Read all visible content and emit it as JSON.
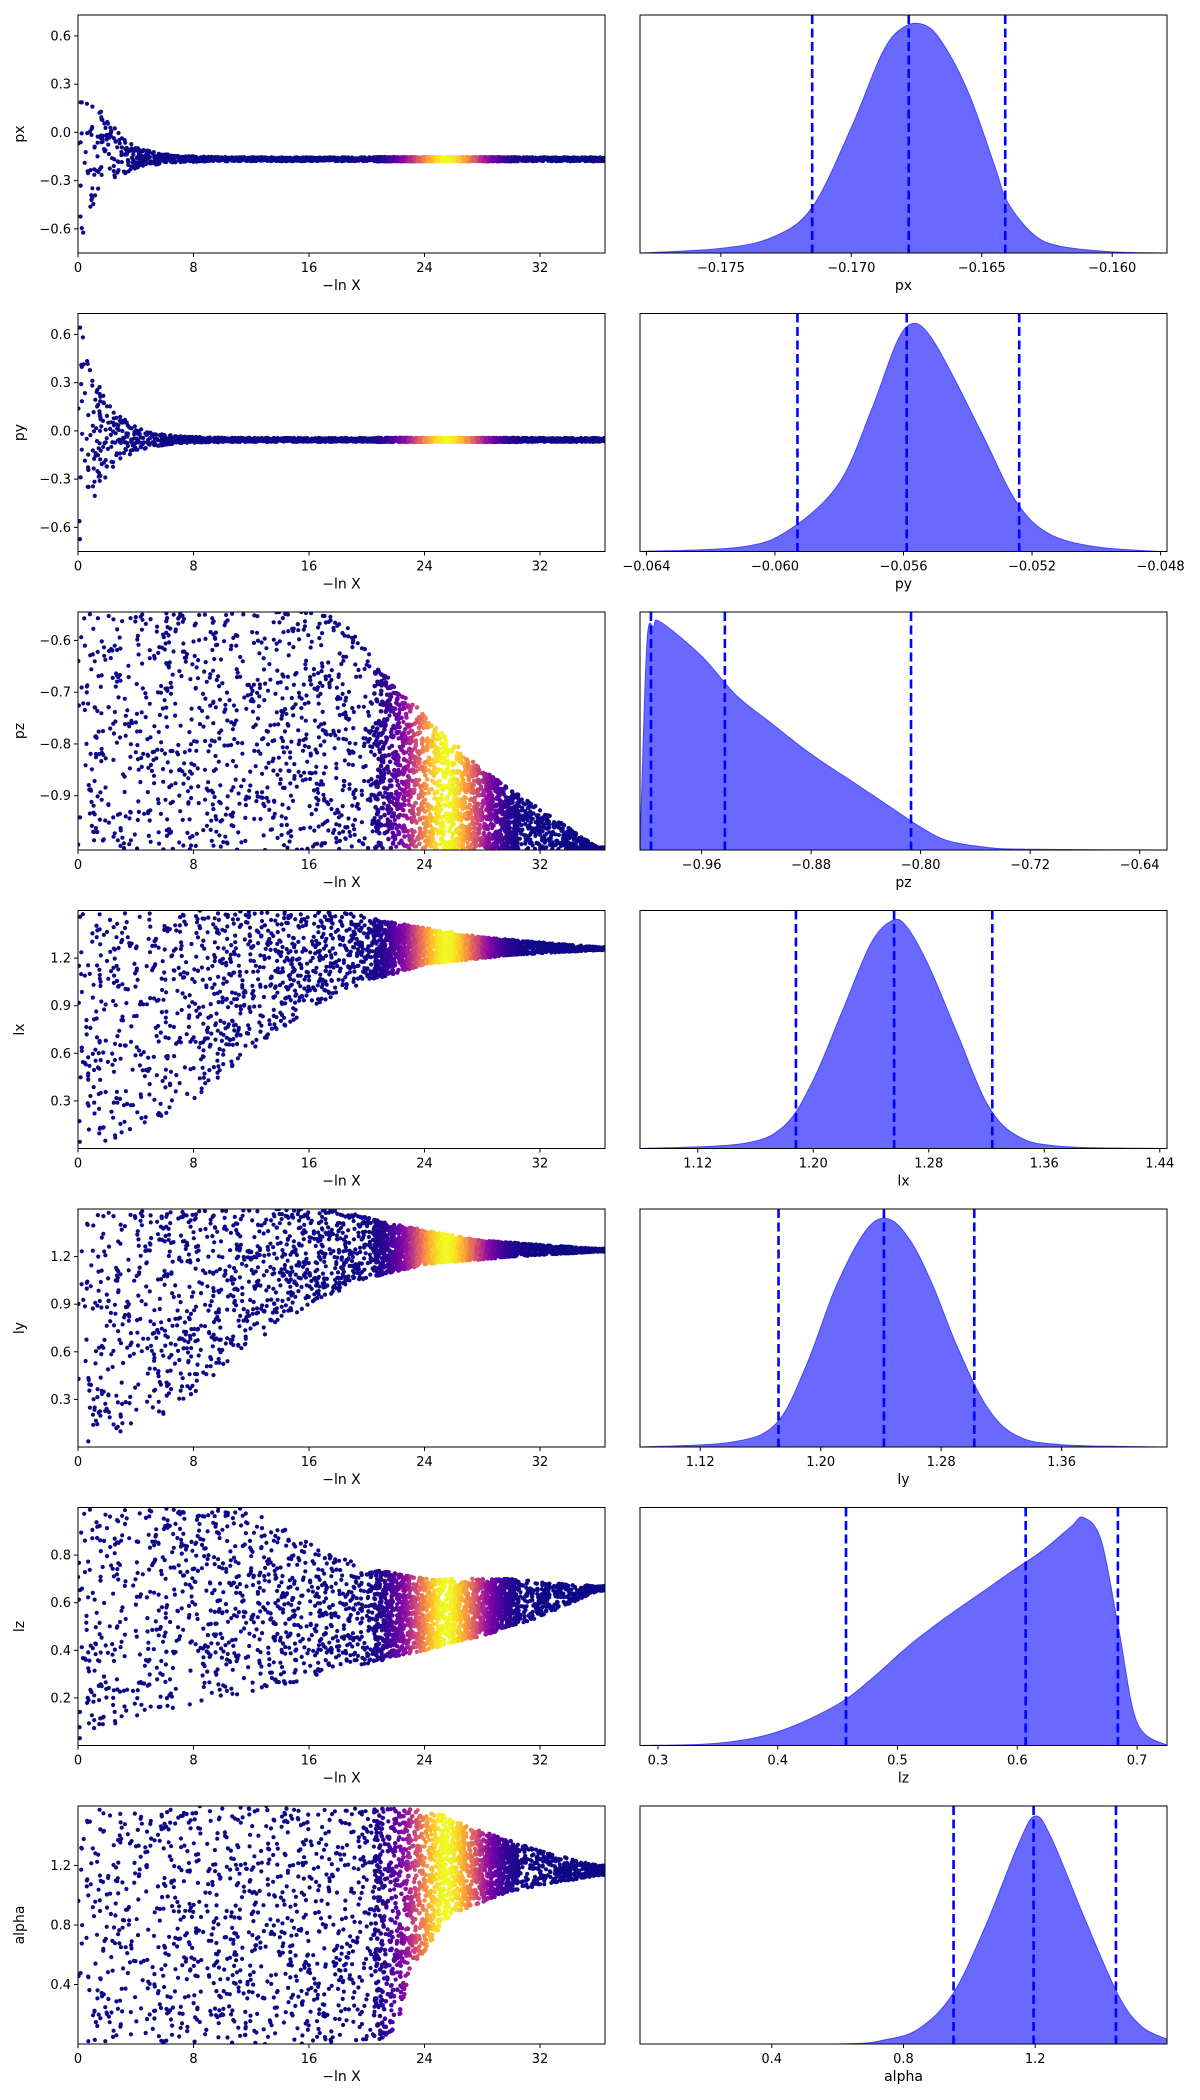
{
  "figure": {
    "colormap": "plasma",
    "posterior_fill": "#4444ff",
    "quantile_line": "#0000ff"
  },
  "chart_data": [
    {
      "type": "scatter",
      "panel": "trace",
      "param": "px",
      "xlabel": "−ln X",
      "ylabel": "px",
      "xlim": [
        0,
        36.5
      ],
      "ylim": [
        -0.75,
        0.73
      ],
      "xticks": [
        0,
        8,
        16,
        24,
        32
      ],
      "xtick_labels": [
        "0",
        "8",
        "16",
        "24",
        "32"
      ],
      "yticks": [
        -0.6,
        -0.3,
        0.0,
        0.3,
        0.6
      ],
      "ytick_labels": [
        "−0.6",
        "−0.3",
        "0.0",
        "0.3",
        "0.6"
      ],
      "spread": {
        "kind": "converge",
        "center": -0.167,
        "lower_start": -0.75,
        "upper_start": 0.73,
        "tau": 1.6,
        "lower_floor": -0.75,
        "upper_cap": 0.73
      },
      "posterior_peak_x": 25.5
    },
    {
      "type": "area",
      "panel": "posterior",
      "param": "px",
      "xlabel": "px",
      "xlim": [
        -0.1781,
        -0.1579
      ],
      "xticks": [
        -0.175,
        -0.17,
        -0.165,
        -0.16
      ],
      "xtick_labels": [
        "−0.175",
        "−0.170",
        "−0.165",
        "−0.160"
      ],
      "density": {
        "x": [
          -0.178,
          -0.175,
          -0.173,
          -0.1715,
          -0.17,
          -0.1688,
          -0.168,
          -0.1672,
          -0.1665,
          -0.1655,
          -0.1645,
          -0.164,
          -0.163,
          -0.162,
          -0.16,
          -0.158
        ],
        "y": [
          0,
          0.02,
          0.07,
          0.2,
          0.55,
          0.88,
          0.99,
          1.0,
          0.92,
          0.7,
          0.38,
          0.22,
          0.08,
          0.03,
          0.005,
          0
        ]
      },
      "quantiles": [
        -0.1715,
        -0.1678,
        -0.1641
      ]
    },
    {
      "type": "scatter",
      "panel": "trace",
      "param": "py",
      "xlabel": "−ln X",
      "ylabel": "py",
      "xlim": [
        0,
        36.5
      ],
      "ylim": [
        -0.75,
        0.73
      ],
      "xticks": [
        0,
        8,
        16,
        24,
        32
      ],
      "xtick_labels": [
        "0",
        "8",
        "16",
        "24",
        "32"
      ],
      "yticks": [
        -0.6,
        -0.3,
        0.0,
        0.3,
        0.6
      ],
      "ytick_labels": [
        "−0.6",
        "−0.3",
        "0.0",
        "0.3",
        "0.6"
      ],
      "spread": {
        "kind": "converge",
        "center": -0.056,
        "lower_start": -0.75,
        "upper_start": 0.73,
        "tau": 1.7,
        "lower_floor": -0.75,
        "upper_cap": 0.73
      },
      "posterior_peak_x": 25.5
    },
    {
      "type": "area",
      "panel": "posterior",
      "param": "py",
      "xlabel": "py",
      "xlim": [
        -0.0642,
        -0.0478
      ],
      "xticks": [
        -0.064,
        -0.06,
        -0.056,
        -0.052,
        -0.048
      ],
      "xtick_labels": [
        "−0.064",
        "−0.060",
        "−0.056",
        "−0.052",
        "−0.048"
      ],
      "density": {
        "x": [
          -0.0642,
          -0.061,
          -0.0595,
          -0.058,
          -0.057,
          -0.0562,
          -0.0557,
          -0.0552,
          -0.0545,
          -0.0535,
          -0.0525,
          -0.0515,
          -0.05,
          -0.048
        ],
        "y": [
          0,
          0.02,
          0.1,
          0.3,
          0.62,
          0.92,
          1.0,
          0.95,
          0.78,
          0.5,
          0.22,
          0.08,
          0.02,
          0
        ]
      },
      "quantiles": [
        -0.0593,
        -0.0559,
        -0.0524
      ]
    },
    {
      "type": "scatter",
      "panel": "trace",
      "param": "pz",
      "xlabel": "−ln X",
      "ylabel": "pz",
      "xlim": [
        0,
        36.5
      ],
      "ylim": [
        -1.005,
        -0.545
      ],
      "xticks": [
        0,
        8,
        16,
        24,
        32
      ],
      "xtick_labels": [
        "0",
        "8",
        "16",
        "24",
        "32"
      ],
      "yticks": [
        -0.9,
        -0.8,
        -0.7,
        -0.6
      ],
      "ytick_labels": [
        "−0.9",
        "−0.8",
        "−0.7",
        "−0.6"
      ],
      "spread": {
        "kind": "edge",
        "lower": -1.005,
        "upper_start": -0.545,
        "edge_points": [
          [
            0,
            -0.545
          ],
          [
            18,
            -0.545
          ],
          [
            22,
            -0.69
          ],
          [
            28,
            -0.85
          ],
          [
            36,
            -1.0
          ]
        ]
      },
      "posterior_peak_x": 25.5
    },
    {
      "type": "area",
      "panel": "posterior",
      "param": "pz",
      "xlabel": "pz",
      "xlim": [
        -1.005,
        -0.62
      ],
      "xticks": [
        -0.96,
        -0.88,
        -0.8,
        -0.72,
        -0.64
      ],
      "xtick_labels": [
        "−0.96",
        "−0.88",
        "−0.80",
        "−0.72",
        "−0.64"
      ],
      "density": {
        "x": [
          -1.005,
          -1.0,
          -0.995,
          -0.99,
          -0.96,
          -0.935,
          -0.91,
          -0.88,
          -0.85,
          -0.82,
          -0.8,
          -0.78,
          -0.75,
          -0.72,
          -0.62
        ],
        "y": [
          0,
          0.9,
          0.98,
          1.0,
          0.85,
          0.68,
          0.56,
          0.42,
          0.3,
          0.18,
          0.1,
          0.04,
          0.01,
          0.003,
          0
        ]
      },
      "quantiles": [
        -0.997,
        -0.943,
        -0.807
      ]
    },
    {
      "type": "scatter",
      "panel": "trace",
      "param": "lx",
      "xlabel": "−ln X",
      "ylabel": "lx",
      "xlim": [
        0,
        36.5
      ],
      "ylim": [
        0,
        1.5
      ],
      "xticks": [
        0,
        8,
        16,
        24,
        32
      ],
      "xtick_labels": [
        "0",
        "8",
        "16",
        "24",
        "32"
      ],
      "yticks": [
        0.3,
        0.6,
        0.9,
        1.2
      ],
      "ytick_labels": [
        "0.3",
        "0.6",
        "0.9",
        "1.2"
      ],
      "spread": {
        "kind": "edge_top",
        "upper": 1.5,
        "edge_points": [
          [
            0,
            0.0
          ],
          [
            3,
            0.05
          ],
          [
            8,
            0.3
          ],
          [
            12,
            0.62
          ],
          [
            16,
            0.88
          ],
          [
            20,
            1.05
          ],
          [
            24,
            1.16
          ],
          [
            30,
            1.22
          ],
          [
            36,
            1.25
          ]
        ],
        "cap_points": [
          [
            0,
            1.5
          ],
          [
            18,
            1.5
          ],
          [
            22,
            1.42
          ],
          [
            28,
            1.33
          ],
          [
            36,
            1.27
          ]
        ]
      },
      "posterior_peak_x": 25.5
    },
    {
      "type": "area",
      "panel": "posterior",
      "param": "lx",
      "xlabel": "lx",
      "xlim": [
        1.08,
        1.445
      ],
      "xticks": [
        1.12,
        1.2,
        1.28,
        1.36,
        1.44
      ],
      "xtick_labels": [
        "1.12",
        "1.20",
        "1.28",
        "1.36",
        "1.44"
      ],
      "density": {
        "x": [
          1.08,
          1.15,
          1.18,
          1.2,
          1.22,
          1.24,
          1.255,
          1.265,
          1.28,
          1.3,
          1.32,
          1.34,
          1.37,
          1.445
        ],
        "y": [
          0,
          0.02,
          0.1,
          0.3,
          0.6,
          0.9,
          1.0,
          0.97,
          0.8,
          0.5,
          0.2,
          0.06,
          0.01,
          0
        ]
      },
      "quantiles": [
        1.188,
        1.256,
        1.324
      ]
    },
    {
      "type": "scatter",
      "panel": "trace",
      "param": "ly",
      "xlabel": "−ln X",
      "ylabel": "ly",
      "xlim": [
        0,
        36.5
      ],
      "ylim": [
        0,
        1.5
      ],
      "xticks": [
        0,
        8,
        16,
        24,
        32
      ],
      "xtick_labels": [
        "0",
        "8",
        "16",
        "24",
        "32"
      ],
      "yticks": [
        0.3,
        0.6,
        0.9,
        1.2
      ],
      "ytick_labels": [
        "0.3",
        "0.6",
        "0.9",
        "1.2"
      ],
      "spread": {
        "kind": "edge_top",
        "upper": 1.5,
        "edge_points": [
          [
            0,
            0.0
          ],
          [
            4,
            0.1
          ],
          [
            8,
            0.32
          ],
          [
            12,
            0.65
          ],
          [
            16,
            0.9
          ],
          [
            20,
            1.06
          ],
          [
            24,
            1.15
          ],
          [
            30,
            1.2
          ],
          [
            36,
            1.23
          ]
        ],
        "cap_points": [
          [
            0,
            1.5
          ],
          [
            18,
            1.5
          ],
          [
            22,
            1.4
          ],
          [
            28,
            1.3
          ],
          [
            36,
            1.25
          ]
        ]
      },
      "posterior_peak_x": 25.5
    },
    {
      "type": "area",
      "panel": "posterior",
      "param": "ly",
      "xlabel": "ly",
      "xlim": [
        1.08,
        1.43
      ],
      "xticks": [
        1.12,
        1.2,
        1.28,
        1.36
      ],
      "xtick_labels": [
        "1.12",
        "1.20",
        "1.28",
        "1.36"
      ],
      "density": {
        "x": [
          1.08,
          1.14,
          1.17,
          1.19,
          1.21,
          1.23,
          1.245,
          1.26,
          1.275,
          1.29,
          1.31,
          1.33,
          1.36,
          1.43
        ],
        "y": [
          0,
          0.02,
          0.1,
          0.35,
          0.7,
          0.95,
          1.0,
          0.9,
          0.7,
          0.45,
          0.18,
          0.05,
          0.01,
          0
        ]
      },
      "quantiles": [
        1.172,
        1.242,
        1.302
      ]
    },
    {
      "type": "scatter",
      "panel": "trace",
      "param": "lz",
      "xlabel": "−ln X",
      "ylabel": "lz",
      "xlim": [
        0,
        36.5
      ],
      "ylim": [
        0,
        1.0
      ],
      "xticks": [
        0,
        8,
        16,
        24,
        32
      ],
      "xtick_labels": [
        "0",
        "8",
        "16",
        "24",
        "32"
      ],
      "yticks": [
        0.2,
        0.4,
        0.6,
        0.8
      ],
      "ytick_labels": [
        "0.2",
        "0.4",
        "0.6",
        "0.8"
      ],
      "spread": {
        "kind": "band",
        "lower_points": [
          [
            0,
            0.0
          ],
          [
            4,
            0.12
          ],
          [
            10,
            0.2
          ],
          [
            16,
            0.28
          ],
          [
            22,
            0.37
          ],
          [
            28,
            0.46
          ],
          [
            32,
            0.54
          ],
          [
            36,
            0.65
          ]
        ],
        "upper_points": [
          [
            0,
            1.0
          ],
          [
            12,
            1.0
          ],
          [
            16,
            0.85
          ],
          [
            20,
            0.75
          ],
          [
            24,
            0.7
          ],
          [
            30,
            0.7
          ],
          [
            36,
            0.67
          ]
        ]
      },
      "posterior_peak_x": 25.5
    },
    {
      "type": "area",
      "panel": "posterior",
      "param": "lz",
      "xlabel": "lz",
      "xlim": [
        0.285,
        0.725
      ],
      "xticks": [
        0.3,
        0.4,
        0.5,
        0.6,
        0.7
      ],
      "xtick_labels": [
        "0.3",
        "0.4",
        "0.5",
        "0.6",
        "0.7"
      ],
      "density": {
        "x": [
          0.285,
          0.35,
          0.4,
          0.45,
          0.48,
          0.51,
          0.54,
          0.57,
          0.6,
          0.62,
          0.645,
          0.655,
          0.67,
          0.685,
          0.7,
          0.725
        ],
        "y": [
          0,
          0.01,
          0.06,
          0.18,
          0.3,
          0.44,
          0.56,
          0.67,
          0.78,
          0.85,
          0.96,
          1.0,
          0.9,
          0.5,
          0.1,
          0
        ]
      },
      "quantiles": [
        0.457,
        0.607,
        0.684
      ]
    },
    {
      "type": "scatter",
      "panel": "trace",
      "param": "alpha",
      "xlabel": "−ln X",
      "ylabel": "alpha",
      "xlim": [
        0,
        36.5
      ],
      "ylim": [
        0,
        1.6
      ],
      "xticks": [
        0,
        8,
        16,
        24,
        32
      ],
      "xtick_labels": [
        "0",
        "8",
        "16",
        "24",
        "32"
      ],
      "yticks": [
        0.4,
        0.8,
        1.2
      ],
      "ytick_labels": [
        "0.4",
        "0.8",
        "1.2"
      ],
      "spread": {
        "kind": "band",
        "lower_points": [
          [
            0,
            0.0
          ],
          [
            20,
            0.0
          ],
          [
            22,
            0.05
          ],
          [
            23,
            0.5
          ],
          [
            26,
            0.88
          ],
          [
            30,
            1.03
          ],
          [
            34,
            1.1
          ],
          [
            36,
            1.13
          ]
        ],
        "upper_points": [
          [
            0,
            1.6
          ],
          [
            22,
            1.6
          ],
          [
            25,
            1.55
          ],
          [
            28,
            1.43
          ],
          [
            32,
            1.3
          ],
          [
            36,
            1.2
          ]
        ]
      },
      "posterior_peak_x": 25.5
    },
    {
      "type": "area",
      "panel": "posterior",
      "param": "alpha",
      "xlabel": "alpha",
      "xlim": [
        0.0,
        1.6
      ],
      "xticks": [
        0.4,
        0.8,
        1.2
      ],
      "xtick_labels": [
        "0.4",
        "0.8",
        "1.2"
      ],
      "density": {
        "x": [
          0.0,
          0.6,
          0.75,
          0.85,
          0.95,
          1.05,
          1.15,
          1.2,
          1.25,
          1.35,
          1.45,
          1.52,
          1.6
        ],
        "y": [
          0,
          0.0,
          0.02,
          0.07,
          0.22,
          0.52,
          0.88,
          1.0,
          0.9,
          0.55,
          0.22,
          0.08,
          0.02
        ]
      },
      "quantiles": [
        0.952,
        1.195,
        1.445
      ]
    }
  ]
}
